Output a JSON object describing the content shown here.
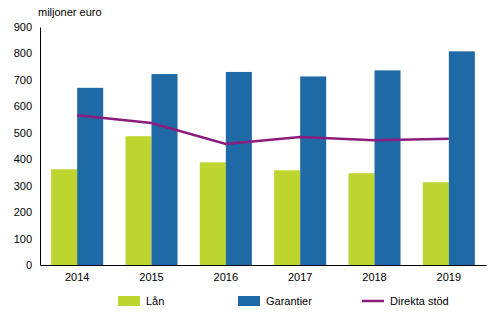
{
  "chart_data": {
    "type": "bar",
    "y_label": "miljoner euro",
    "categories": [
      "2014",
      "2015",
      "2016",
      "2017",
      "2018",
      "2019"
    ],
    "series": [
      {
        "name": "Lån",
        "color": "#bdd52e",
        "type": "bar",
        "values": [
          362,
          487,
          388,
          358,
          347,
          313
        ]
      },
      {
        "name": "Garantier",
        "color": "#1f6aa6",
        "type": "bar",
        "values": [
          670,
          722,
          730,
          713,
          736,
          808
        ]
      },
      {
        "name": "Direkta stöd",
        "color": "#8b1c7e",
        "type": "line",
        "values": [
          566,
          537,
          458,
          484,
          472,
          477
        ]
      }
    ],
    "ylim": [
      0,
      900
    ],
    "yticks": [
      0,
      100,
      200,
      300,
      400,
      500,
      600,
      700,
      800,
      900
    ],
    "grid": false,
    "legend": "bottom"
  }
}
